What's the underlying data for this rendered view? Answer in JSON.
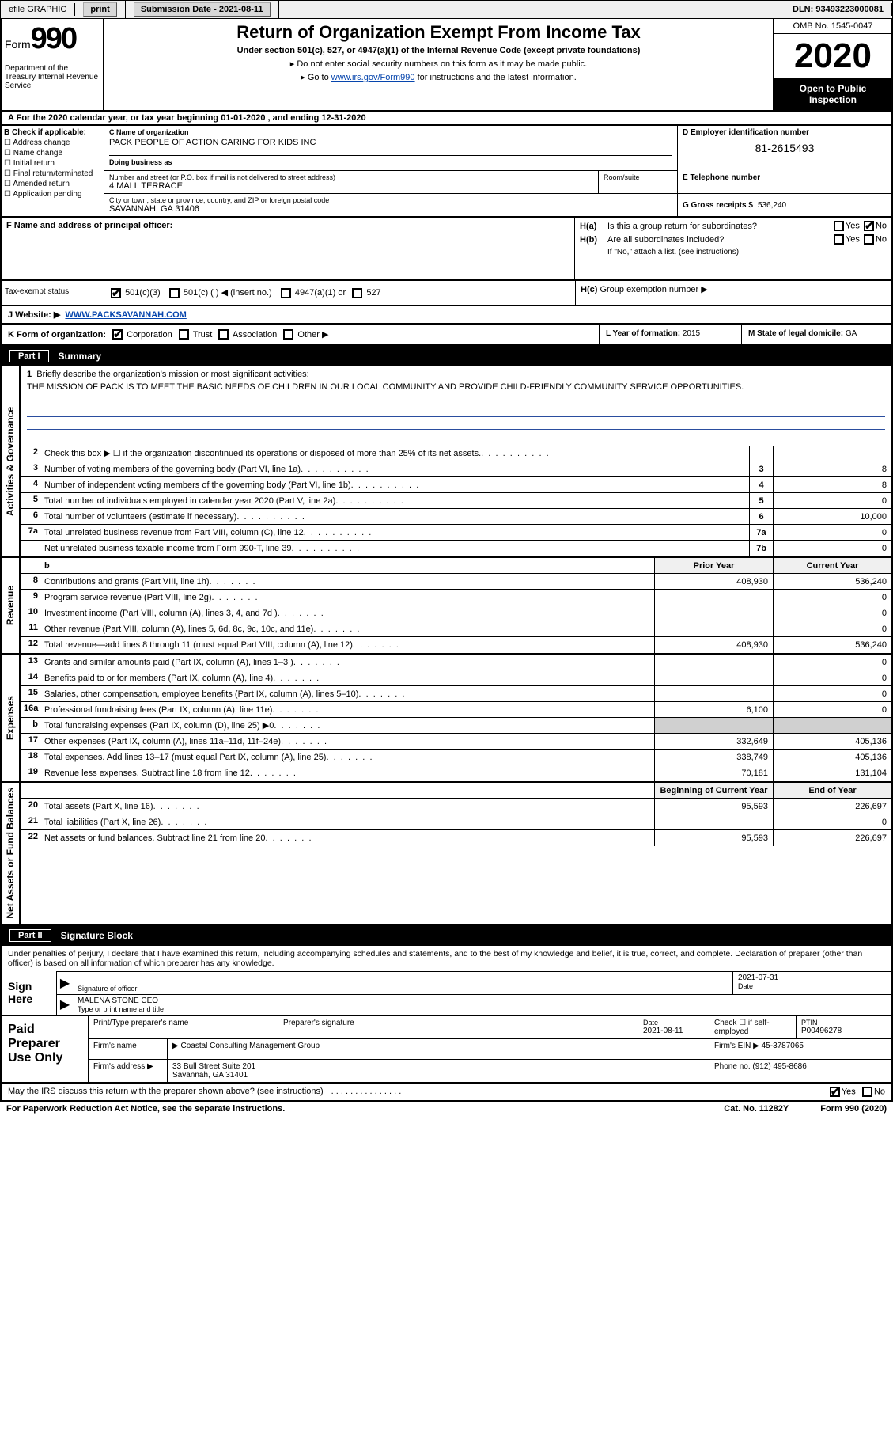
{
  "topbar": {
    "efile_label": "efile GRAPHIC",
    "print_btn": "print",
    "sub_date_label": "Submission Date - 2021-08-11",
    "dln": "DLN: 93493223000081"
  },
  "header": {
    "form_label": "Form",
    "form_number": "990",
    "dept": "Department of the Treasury Internal Revenue Service",
    "title": "Return of Organization Exempt From Income Tax",
    "subtitle": "Under section 501(c), 527, or 4947(a)(1) of the Internal Revenue Code (except private foundations)",
    "note1": "Do not enter social security numbers on this form as it may be made public.",
    "note2_pre": "Go to ",
    "note2_link": "www.irs.gov/Form990",
    "note2_post": " for instructions and the latest information.",
    "omb": "OMB No. 1545-0047",
    "year": "2020",
    "open_public": "Open to Public Inspection"
  },
  "period": "For the 2020 calendar year, or tax year beginning 01-01-2020    , and ending 12-31-2020",
  "box_b": {
    "label": "B Check if applicable:",
    "opts": [
      "Address change",
      "Name change",
      "Initial return",
      "Final return/terminated",
      "Amended return",
      "Application pending"
    ]
  },
  "box_c": {
    "name_label": "C Name of organization",
    "name": "PACK PEOPLE OF ACTION CARING FOR KIDS INC",
    "dba_label": "Doing business as",
    "dba": "",
    "street_label": "Number and street (or P.O. box if mail is not delivered to street address)",
    "street": "4 MALL TERRACE",
    "suite_label": "Room/suite",
    "city_label": "City or town, state or province, country, and ZIP or foreign postal code",
    "city": "SAVANNAH, GA  31406"
  },
  "box_d": {
    "label": "D Employer identification number",
    "value": "81-2615493"
  },
  "box_e": {
    "label": "E Telephone number",
    "value": ""
  },
  "box_g": {
    "label": "G Gross receipts $",
    "value": "536,240"
  },
  "box_f": {
    "label": "F  Name and address of principal officer:",
    "value": ""
  },
  "box_h": {
    "a_label": "Is this a group return for subordinates?",
    "a_yes": "Yes",
    "a_no": "No",
    "b_label": "Are all subordinates included?",
    "note": "If \"No,\" attach a list. (see instructions)",
    "c_label": "Group exemption number ▶"
  },
  "tax_status": {
    "label": "Tax-exempt status:",
    "opt1": "501(c)(3)",
    "opt2": "501(c) (  ) ◀ (insert no.)",
    "opt3": "4947(a)(1) or",
    "opt4": "527"
  },
  "website": {
    "label": "J   Website: ▶",
    "value": "WWW.PACKSAVANNAH.COM"
  },
  "box_k": {
    "label": "K Form of organization:",
    "opts": [
      "Corporation",
      "Trust",
      "Association",
      "Other ▶"
    ],
    "year_label": "L Year of formation:",
    "year": "2015",
    "state_label": "M State of legal domicile:",
    "state": "GA"
  },
  "part1": {
    "num": "Part I",
    "title": "Summary"
  },
  "mission": {
    "line1_label": "Briefly describe the organization's mission or most significant activities:",
    "text": "THE MISSION OF PACK IS TO MEET THE BASIC NEEDS OF CHILDREN IN OUR LOCAL COMMUNITY AND PROVIDE CHILD-FRIENDLY COMMUNITY SERVICE OPPORTUNITIES."
  },
  "gov_lines": [
    {
      "n": "2",
      "t": "Check this box ▶ ☐  if the organization discontinued its operations or disposed of more than 25% of its net assets.",
      "box": "",
      "v": ""
    },
    {
      "n": "3",
      "t": "Number of voting members of the governing body (Part VI, line 1a)",
      "box": "3",
      "v": "8"
    },
    {
      "n": "4",
      "t": "Number of independent voting members of the governing body (Part VI, line 1b)",
      "box": "4",
      "v": "8"
    },
    {
      "n": "5",
      "t": "Total number of individuals employed in calendar year 2020 (Part V, line 2a)",
      "box": "5",
      "v": "0"
    },
    {
      "n": "6",
      "t": "Total number of volunteers (estimate if necessary)",
      "box": "6",
      "v": "10,000"
    },
    {
      "n": "7a",
      "t": "Total unrelated business revenue from Part VIII, column (C), line 12",
      "box": "7a",
      "v": "0"
    },
    {
      "n": "",
      "t": "Net unrelated business taxable income from Form 990-T, line 39",
      "box": "7b",
      "v": "0"
    }
  ],
  "col_headers": {
    "prior": "Prior Year",
    "current": "Current Year"
  },
  "rev_lines": [
    {
      "n": "8",
      "t": "Contributions and grants (Part VIII, line 1h)",
      "p": "408,930",
      "c": "536,240"
    },
    {
      "n": "9",
      "t": "Program service revenue (Part VIII, line 2g)",
      "p": "",
      "c": "0"
    },
    {
      "n": "10",
      "t": "Investment income (Part VIII, column (A), lines 3, 4, and 7d )",
      "p": "",
      "c": "0"
    },
    {
      "n": "11",
      "t": "Other revenue (Part VIII, column (A), lines 5, 6d, 8c, 9c, 10c, and 11e)",
      "p": "",
      "c": "0"
    },
    {
      "n": "12",
      "t": "Total revenue—add lines 8 through 11 (must equal Part VIII, column (A), line 12)",
      "p": "408,930",
      "c": "536,240"
    }
  ],
  "exp_lines": [
    {
      "n": "13",
      "t": "Grants and similar amounts paid (Part IX, column (A), lines 1–3 )",
      "p": "",
      "c": "0"
    },
    {
      "n": "14",
      "t": "Benefits paid to or for members (Part IX, column (A), line 4)",
      "p": "",
      "c": "0"
    },
    {
      "n": "15",
      "t": "Salaries, other compensation, employee benefits (Part IX, column (A), lines 5–10)",
      "p": "",
      "c": "0"
    },
    {
      "n": "16a",
      "t": "Professional fundraising fees (Part IX, column (A), line 11e)",
      "p": "6,100",
      "c": "0"
    },
    {
      "n": "b",
      "t": "Total fundraising expenses (Part IX, column (D), line 25) ▶0",
      "p": "GREY",
      "c": "GREY"
    },
    {
      "n": "17",
      "t": "Other expenses (Part IX, column (A), lines 11a–11d, 11f–24e)",
      "p": "332,649",
      "c": "405,136"
    },
    {
      "n": "18",
      "t": "Total expenses. Add lines 13–17 (must equal Part IX, column (A), line 25)",
      "p": "338,749",
      "c": "405,136"
    },
    {
      "n": "19",
      "t": "Revenue less expenses. Subtract line 18 from line 12",
      "p": "70,181",
      "c": "131,104"
    }
  ],
  "na_headers": {
    "beg": "Beginning of Current Year",
    "end": "End of Year"
  },
  "na_lines": [
    {
      "n": "20",
      "t": "Total assets (Part X, line 16)",
      "p": "95,593",
      "c": "226,697"
    },
    {
      "n": "21",
      "t": "Total liabilities (Part X, line 26)",
      "p": "",
      "c": "0"
    },
    {
      "n": "22",
      "t": "Net assets or fund balances. Subtract line 21 from line 20",
      "p": "95,593",
      "c": "226,697"
    }
  ],
  "part2": {
    "num": "Part II",
    "title": "Signature Block"
  },
  "sig": {
    "decl": "Under penalties of perjury, I declare that I have examined this return, including accompanying schedules and statements, and to the best of my knowledge and belief, it is true, correct, and complete. Declaration of preparer (other than officer) is based on all information of which preparer has any knowledge.",
    "sign_here": "Sign Here",
    "officer_sig": "Signature of officer",
    "date_label": "Date",
    "date": "2021-07-31",
    "name": "MALENA STONE CEO",
    "name_label": "Type or print name and title"
  },
  "prep": {
    "label": "Paid Preparer Use Only",
    "name_label": "Print/Type preparer's name",
    "sig_label": "Preparer's signature",
    "date_label": "Date",
    "date": "2021-08-11",
    "check_label": "Check ☐ if self-employed",
    "ptin_label": "PTIN",
    "ptin": "P00496278",
    "firm_name_label": "Firm's name",
    "firm_name": "Coastal Consulting Management Group",
    "firm_ein_label": "Firm's EIN ▶",
    "firm_ein": "45-3787065",
    "firm_addr_label": "Firm's address ▶",
    "firm_addr": "33 Bull Street Suite 201",
    "firm_city": "Savannah, GA  31401",
    "phone_label": "Phone no.",
    "phone": "(912) 495-8686"
  },
  "discuss": {
    "text": "May the IRS discuss this return with the preparer shown above? (see instructions)",
    "yes": "Yes",
    "no": "No"
  },
  "footer": {
    "left": "For Paperwork Reduction Act Notice, see the separate instructions.",
    "mid": "Cat. No. 11282Y",
    "right": "Form 990 (2020)"
  },
  "side_labels": {
    "gov": "Activities & Governance",
    "rev": "Revenue",
    "exp": "Expenses",
    "na": "Net Assets or Fund Balances"
  }
}
